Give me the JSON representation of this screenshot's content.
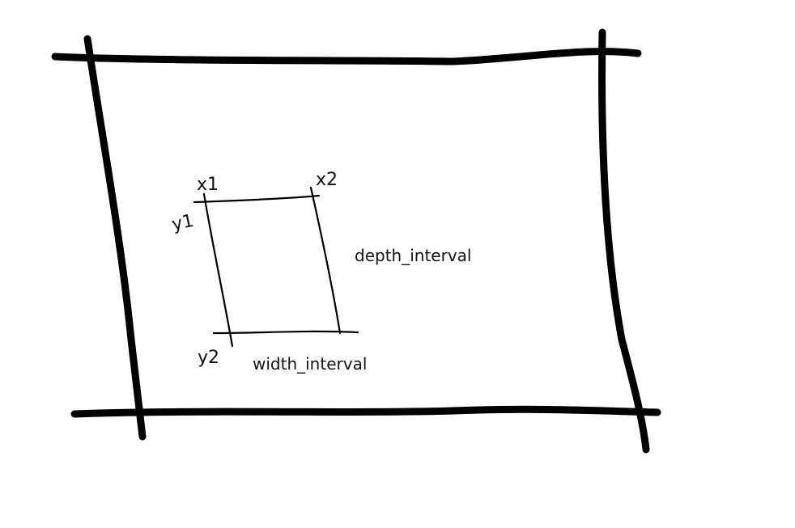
{
  "labels": {
    "x1": "x1",
    "x2": "x2",
    "y1": "y1",
    "y2": "y2",
    "depth_interval": "depth_interval",
    "width_interval": "width_interval"
  }
}
